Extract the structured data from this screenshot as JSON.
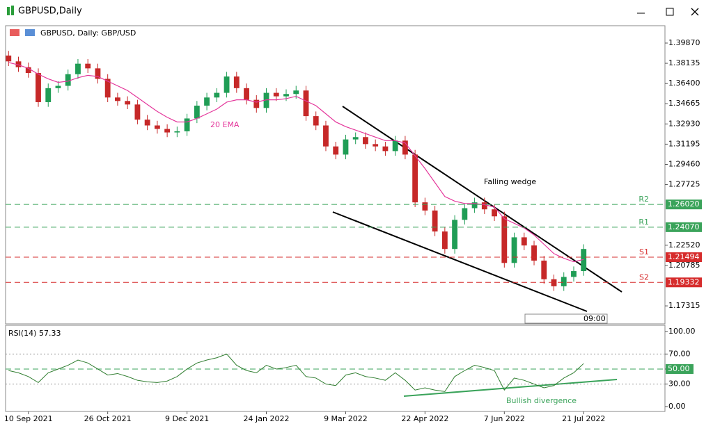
{
  "window": {
    "title": "GBPUSD,Daily"
  },
  "chart_data": [
    {
      "type": "candlestick",
      "title": "GBPUSD, Daily:  GBP/USD",
      "open": [
        1.388,
        1.383,
        1.378,
        1.373,
        1.348,
        1.36,
        1.362,
        1.372,
        1.381,
        1.377,
        1.368,
        1.352,
        1.349,
        1.346,
        1.333,
        1.328,
        1.325,
        1.322,
        1.323,
        1.334,
        1.345,
        1.352,
        1.356,
        1.37,
        1.36,
        1.35,
        1.343,
        1.356,
        1.353,
        1.355,
        1.358,
        1.336,
        1.328,
        1.31,
        1.303,
        1.316,
        1.318,
        1.312,
        1.31,
        1.306,
        1.315,
        1.303,
        1.262,
        1.255,
        1.237,
        1.222,
        1.247,
        1.257,
        1.262,
        1.256,
        1.25,
        1.21,
        1.232,
        1.225,
        1.212,
        1.196,
        1.19,
        1.198,
        1.203
      ],
      "high": [
        1.392,
        1.387,
        1.382,
        1.377,
        1.364,
        1.366,
        1.376,
        1.385,
        1.385,
        1.381,
        1.372,
        1.356,
        1.353,
        1.35,
        1.337,
        1.332,
        1.329,
        1.327,
        1.338,
        1.349,
        1.356,
        1.36,
        1.374,
        1.374,
        1.364,
        1.354,
        1.36,
        1.36,
        1.359,
        1.362,
        1.362,
        1.34,
        1.332,
        1.314,
        1.32,
        1.322,
        1.322,
        1.316,
        1.314,
        1.319,
        1.319,
        1.307,
        1.266,
        1.259,
        1.241,
        1.251,
        1.261,
        1.266,
        1.266,
        1.26,
        1.254,
        1.236,
        1.236,
        1.229,
        1.216,
        1.2,
        1.202,
        1.207,
        1.226
      ],
      "low": [
        1.379,
        1.374,
        1.369,
        1.344,
        1.344,
        1.356,
        1.358,
        1.368,
        1.373,
        1.364,
        1.348,
        1.345,
        1.342,
        1.329,
        1.324,
        1.321,
        1.318,
        1.318,
        1.319,
        1.33,
        1.341,
        1.348,
        1.352,
        1.356,
        1.346,
        1.339,
        1.339,
        1.349,
        1.349,
        1.351,
        1.332,
        1.324,
        1.306,
        1.299,
        1.299,
        1.312,
        1.308,
        1.306,
        1.302,
        1.302,
        1.299,
        1.258,
        1.251,
        1.233,
        1.218,
        1.218,
        1.243,
        1.253,
        1.252,
        1.246,
        1.206,
        1.206,
        1.221,
        1.208,
        1.192,
        1.186,
        1.186,
        1.194,
        1.199
      ],
      "close": [
        1.383,
        1.378,
        1.373,
        1.348,
        1.36,
        1.362,
        1.372,
        1.381,
        1.377,
        1.368,
        1.352,
        1.349,
        1.346,
        1.333,
        1.328,
        1.325,
        1.322,
        1.323,
        1.334,
        1.345,
        1.352,
        1.356,
        1.37,
        1.36,
        1.35,
        1.343,
        1.356,
        1.353,
        1.355,
        1.358,
        1.336,
        1.328,
        1.31,
        1.303,
        1.316,
        1.318,
        1.312,
        1.31,
        1.306,
        1.315,
        1.303,
        1.262,
        1.255,
        1.237,
        1.222,
        1.247,
        1.257,
        1.262,
        1.256,
        1.25,
        1.21,
        1.232,
        1.225,
        1.212,
        1.196,
        1.19,
        1.198,
        1.203,
        1.222
      ],
      "up_color": "#1f9d55",
      "down_color": "#c62828",
      "ema": {
        "name": "20 EMA",
        "color": "#e4379b",
        "values": [
          1.382,
          1.38,
          1.377,
          1.372,
          1.368,
          1.365,
          1.366,
          1.369,
          1.371,
          1.37,
          1.366,
          1.362,
          1.358,
          1.352,
          1.346,
          1.34,
          1.335,
          1.331,
          1.331,
          1.334,
          1.338,
          1.342,
          1.348,
          1.35,
          1.35,
          1.348,
          1.35,
          1.35,
          1.351,
          1.353,
          1.349,
          1.345,
          1.338,
          1.331,
          1.327,
          1.324,
          1.321,
          1.318,
          1.315,
          1.315,
          1.313,
          1.302,
          1.291,
          1.279,
          1.267,
          1.263,
          1.261,
          1.261,
          1.26,
          1.258,
          1.248,
          1.244,
          1.24,
          1.234,
          1.226,
          1.218,
          1.214,
          1.211,
          1.213
        ]
      },
      "levels": [
        {
          "name": "R2",
          "value": 1.2602,
          "label": "1.26020",
          "color": "#3aa35a"
        },
        {
          "name": "R1",
          "value": 1.2407,
          "label": "1.24070",
          "color": "#3aa35a"
        },
        {
          "name": "S1",
          "value": 1.21494,
          "color": "#d62c2c"
        },
        {
          "name": "S2",
          "value": 1.19332,
          "color": "#d62c2c"
        }
      ],
      "annotations": [
        "Falling wedge",
        "09:00"
      ],
      "xlim": [
        -0.3,
        66.2
      ],
      "xticks": [
        {
          "value": 2,
          "label": "10 Sep 2021"
        },
        {
          "value": 10,
          "label": "26 Oct 2021"
        },
        {
          "value": 18,
          "label": "9 Dec 2021"
        },
        {
          "value": 26,
          "label": "24 Jan 2022"
        },
        {
          "value": 34,
          "label": "9 Mar 2022"
        },
        {
          "value": 42,
          "label": "22 Apr 2022"
        },
        {
          "value": 50,
          "label": "7 Jun 2022"
        },
        {
          "value": 58,
          "label": "21 Jul 2022"
        }
      ],
      "ylim": [
        1.1577,
        1.4136
      ],
      "yticks": [
        {
          "value": 1.3987,
          "label": "1.39870"
        },
        1.38135,
        {
          "value": 1.364,
          "label": "1.36400"
        },
        1.34665,
        {
          "value": 1.3293,
          "label": "1.32930"
        },
        1.31195,
        {
          "value": 1.2946,
          "label": "1.29460"
        },
        1.27725,
        {
          "value": 1.2252,
          "label": "1.22520"
        },
        1.20785,
        1.17315
      ]
    },
    {
      "type": "line",
      "title": "RSI(14) 57.33",
      "series": [
        {
          "color": "#2f7d2f",
          "values": [
            48,
            45,
            40,
            32,
            45,
            50,
            55,
            62,
            58,
            50,
            42,
            44,
            40,
            35,
            33,
            32,
            34,
            40,
            50,
            58,
            62,
            65,
            70,
            55,
            48,
            45,
            55,
            50,
            52,
            55,
            40,
            38,
            30,
            28,
            42,
            45,
            40,
            38,
            35,
            45,
            35,
            22,
            25,
            22,
            20,
            40,
            48,
            55,
            52,
            48,
            22,
            38,
            35,
            30,
            25,
            28,
            38,
            45,
            57.33
          ]
        }
      ],
      "mid_level": {
        "value": 50,
        "label": "50.00",
        "color": "#3aa35a"
      },
      "annotations": [
        "Bullish divergence"
      ],
      "xlim": [
        -0.3,
        66.2
      ],
      "ylim": [
        -6.5,
        108.3
      ],
      "yticks": [
        {
          "value": 100,
          "label": "100.00"
        },
        {
          "value": 70,
          "label": "70.00"
        },
        {
          "value": 50,
          "label": "50.00"
        },
        {
          "value": 30,
          "label": "30.00"
        },
        {
          "value": 0,
          "label": "0.00"
        }
      ]
    }
  ]
}
